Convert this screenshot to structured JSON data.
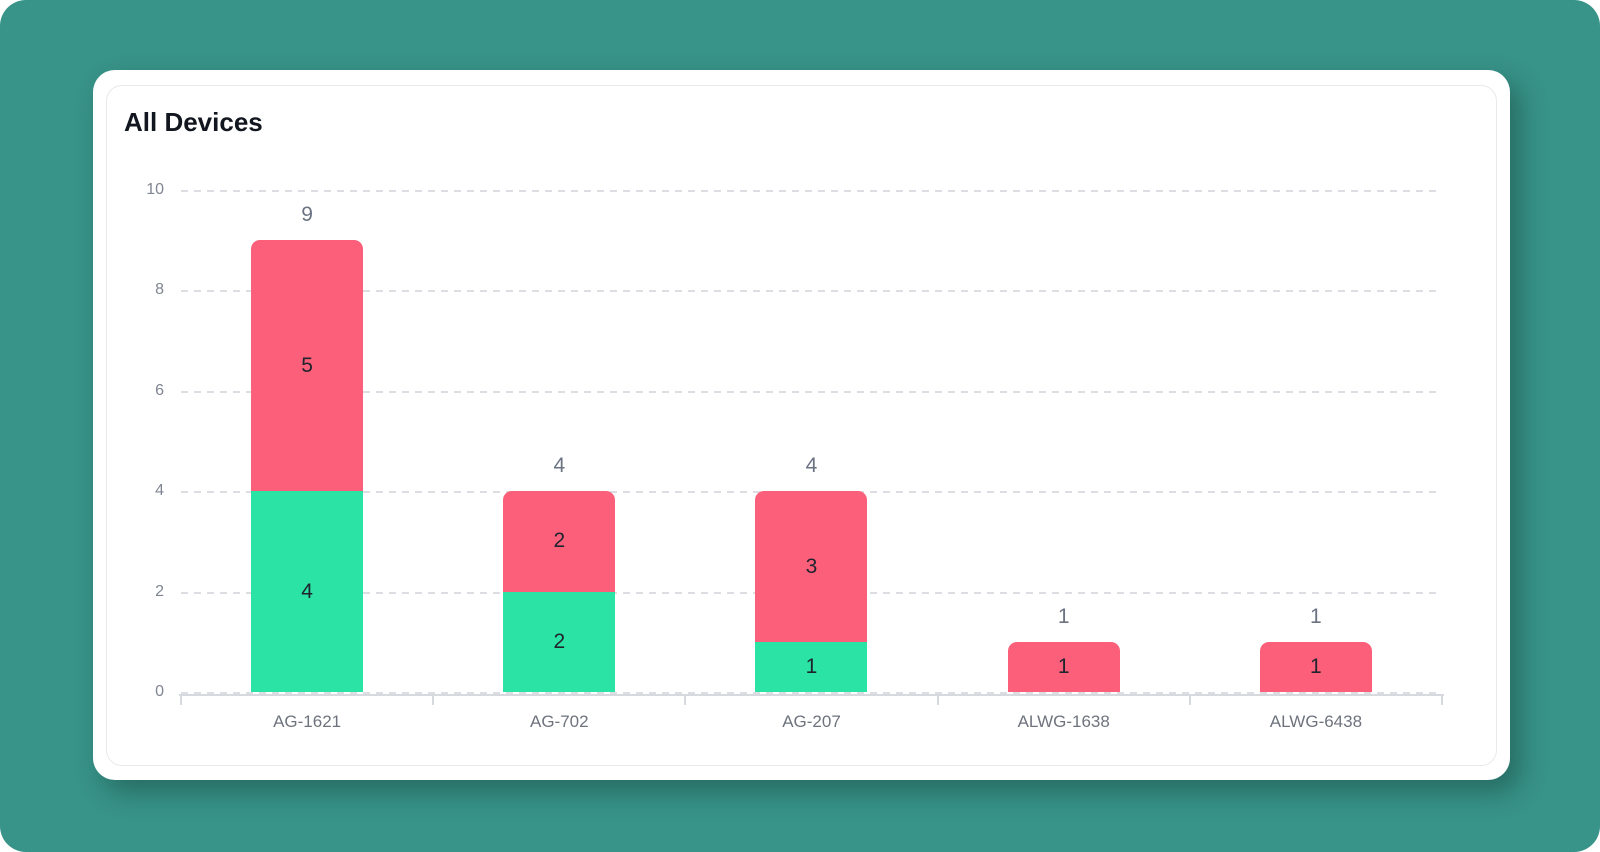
{
  "page": {
    "background_color": "#389388"
  },
  "card": {
    "background_color": "#ffffff"
  },
  "chart_data": {
    "type": "bar",
    "stacked": true,
    "title": "All Devices",
    "categories": [
      "AG-1621",
      "AG-702",
      "AG-207",
      "ALWG-1638",
      "ALWG-6438"
    ],
    "series": [
      {
        "name": "green",
        "color": "#2ae3a4",
        "values": [
          4,
          2,
          1,
          0,
          0
        ]
      },
      {
        "name": "pink",
        "color": "#fc5f7a",
        "values": [
          5,
          2,
          3,
          1,
          1
        ]
      }
    ],
    "totals": [
      9,
      4,
      4,
      1,
      1
    ],
    "xlabel": "",
    "ylabel": "",
    "ylim": [
      0,
      10
    ],
    "yticks": [
      0,
      2,
      4,
      6,
      8,
      10
    ],
    "grid": "dashed horizontal gridlines",
    "legend": "none",
    "bar_labels": "segment values inside bars, gray totals above bars",
    "label_colors": {
      "segment_value": "#20242e",
      "total": "#6b7383",
      "y_tick": "#7f8591",
      "category": "#6e737d"
    }
  }
}
